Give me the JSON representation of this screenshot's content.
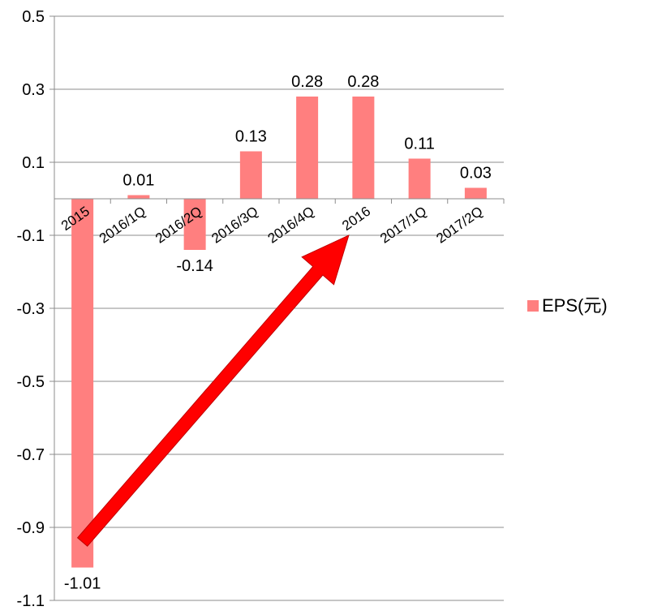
{
  "chart_data": {
    "type": "bar",
    "title": "",
    "xlabel": "",
    "ylabel": "",
    "categories": [
      "2015",
      "2016/1Q",
      "2016/2Q",
      "2016/3Q",
      "2016/4Q",
      "2016",
      "2017/1Q",
      "2017/2Q"
    ],
    "series": [
      {
        "name": "EPS(元)",
        "values": [
          -1.01,
          0.01,
          -0.14,
          0.13,
          0.28,
          0.28,
          0.11,
          0.03
        ],
        "data_labels": [
          "-1.01",
          "0.01",
          "-0.14",
          "0.13",
          "0.28",
          "0.28",
          "0.11",
          "0.03"
        ]
      }
    ],
    "ylim": [
      -1.1,
      0.5
    ],
    "yticks": [
      0.5,
      0.3,
      0.1,
      -0.1,
      -0.3,
      -0.5,
      -0.7,
      -0.9,
      -1.1
    ],
    "ytick_labels": [
      "0.5",
      "0.3",
      "0.1",
      "-0.1",
      "-0.3",
      "-0.5",
      "-0.7",
      "-0.9",
      "-1.1"
    ],
    "grid": true,
    "legend": "right",
    "bar_color": "#ff7f7f",
    "annotation": {
      "type": "arrow",
      "color": "#ff0000",
      "from": {
        "category": "2015",
        "value": -0.94
      },
      "to": {
        "category": "2016",
        "value": -0.1
      }
    }
  }
}
